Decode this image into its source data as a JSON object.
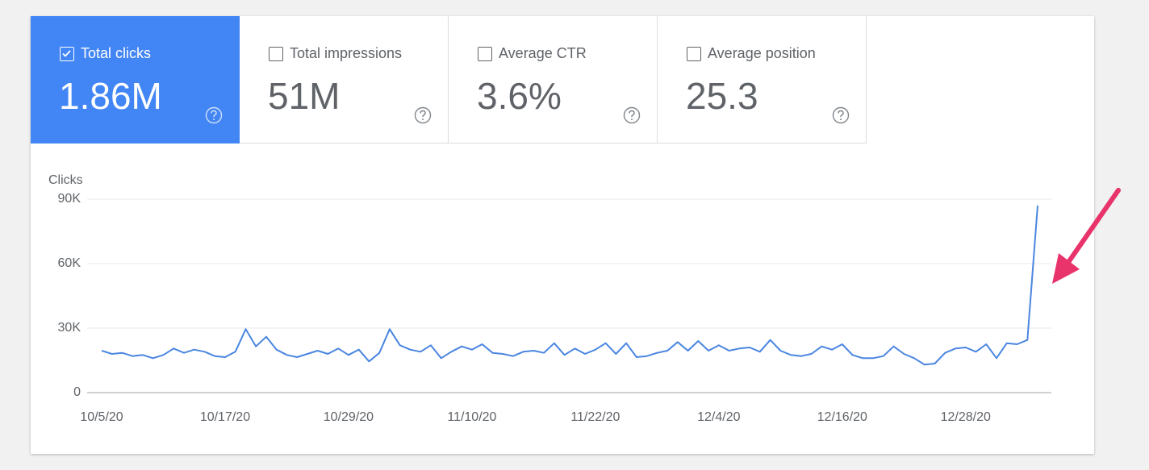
{
  "metrics": [
    {
      "label": "Total clicks",
      "value": "1.86M",
      "selected": true
    },
    {
      "label": "Total impressions",
      "value": "51M",
      "selected": false
    },
    {
      "label": "Average CTR",
      "value": "3.6%",
      "selected": false
    },
    {
      "label": "Average position",
      "value": "25.3",
      "selected": false
    }
  ],
  "chart_data": {
    "type": "line",
    "y_label": "Clicks",
    "color": "#4a86e0",
    "grid": true,
    "categories": [
      "10/5/20",
      null,
      null,
      null,
      null,
      null,
      null,
      null,
      null,
      null,
      null,
      null,
      "10/17/20",
      null,
      null,
      null,
      null,
      null,
      null,
      null,
      null,
      null,
      null,
      null,
      "10/29/20",
      null,
      null,
      null,
      null,
      null,
      null,
      null,
      null,
      null,
      null,
      null,
      "11/10/20",
      null,
      null,
      null,
      null,
      null,
      null,
      null,
      null,
      null,
      null,
      null,
      "11/22/20",
      null,
      null,
      null,
      null,
      null,
      null,
      null,
      null,
      null,
      null,
      null,
      "12/4/20",
      null,
      null,
      null,
      null,
      null,
      null,
      null,
      null,
      null,
      null,
      null,
      "12/16/20",
      null,
      null,
      null,
      null,
      null,
      null,
      null,
      null,
      null,
      null,
      null,
      "12/28/20",
      null,
      null,
      null,
      null,
      null,
      null,
      null
    ],
    "values": [
      19500,
      18000,
      18500,
      17000,
      17500,
      16000,
      17500,
      20500,
      18500,
      20000,
      19000,
      17000,
      16500,
      19000,
      29500,
      21500,
      26000,
      20000,
      17500,
      16500,
      18000,
      19500,
      18000,
      20500,
      17500,
      20000,
      14500,
      18500,
      29500,
      22000,
      20000,
      19000,
      22000,
      16000,
      19000,
      21500,
      20000,
      22500,
      18500,
      18000,
      17000,
      19000,
      19500,
      18500,
      23000,
      17500,
      20500,
      18000,
      20000,
      23000,
      18000,
      23000,
      16500,
      17000,
      18500,
      19500,
      23500,
      19500,
      24000,
      19500,
      22000,
      19500,
      20500,
      21000,
      19000,
      24500,
      19500,
      17500,
      17000,
      18000,
      21500,
      20000,
      22500,
      17500,
      16000,
      16000,
      17000,
      21500,
      18000,
      16000,
      13000,
      13500,
      18500,
      20500,
      21000,
      19000,
      22500,
      16000,
      23000,
      22500,
      24500,
      87000
    ],
    "ylim": [
      0,
      90000
    ],
    "yticks": [
      0,
      {
        "value": 30000,
        "label": "30K"
      },
      {
        "value": 60000,
        "label": "60K"
      },
      {
        "value": 90000,
        "label": "90K"
      }
    ]
  }
}
